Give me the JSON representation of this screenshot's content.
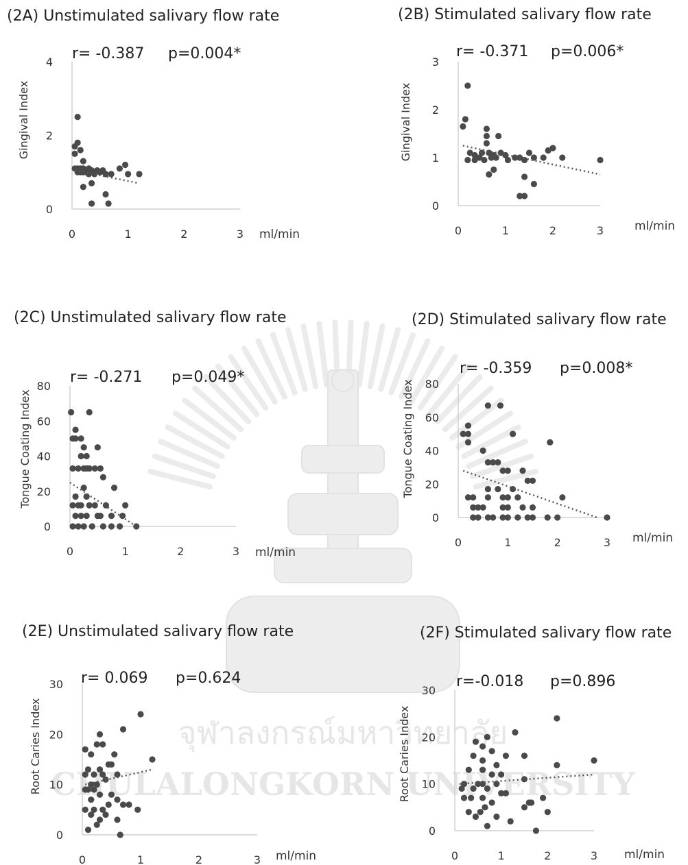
{
  "watermark": {
    "thai": "จุฬาลงกรณ์มหาวิทยาลัย",
    "english": "CHULALONGKORN UNIVERSITY"
  },
  "chart_data": [
    {
      "id": "2A",
      "type": "scatter",
      "title": "(2A) Unstimulated salivary flow rate",
      "r_label": "r= -0.387",
      "p_label": "p=0.004*",
      "ylabel": "Gingival Index",
      "xunit": "ml/min",
      "xlim": [
        0,
        3
      ],
      "ylim": [
        0,
        4
      ],
      "xticks": [
        0,
        1,
        2,
        3
      ],
      "yticks": [
        0,
        2,
        4
      ],
      "trend": [
        [
          0.05,
          1.05
        ],
        [
          1.2,
          0.7
        ]
      ],
      "points": [
        [
          0.1,
          2.5
        ],
        [
          0.1,
          1.8
        ],
        [
          0.05,
          1.7
        ],
        [
          0.15,
          1.6
        ],
        [
          0.05,
          1.5
        ],
        [
          0.2,
          1.3
        ],
        [
          0.05,
          1.1
        ],
        [
          0.1,
          1.1
        ],
        [
          0.15,
          1.1
        ],
        [
          0.2,
          1.1
        ],
        [
          0.25,
          1.05
        ],
        [
          0.3,
          1.1
        ],
        [
          0.35,
          1.05
        ],
        [
          0.1,
          1.0
        ],
        [
          0.15,
          1.0
        ],
        [
          0.2,
          1.0
        ],
        [
          0.25,
          1.0
        ],
        [
          0.3,
          0.95
        ],
        [
          0.4,
          1.0
        ],
        [
          0.45,
          1.05
        ],
        [
          0.5,
          1.0
        ],
        [
          0.55,
          1.05
        ],
        [
          0.6,
          0.95
        ],
        [
          0.7,
          0.95
        ],
        [
          0.85,
          1.1
        ],
        [
          0.95,
          1.2
        ],
        [
          1.0,
          0.95
        ],
        [
          1.2,
          0.95
        ],
        [
          0.2,
          0.6
        ],
        [
          0.35,
          0.7
        ],
        [
          0.6,
          0.4
        ],
        [
          0.35,
          0.15
        ],
        [
          0.65,
          0.15
        ],
        [
          0.4,
          0.95
        ],
        [
          0.12,
          1.05
        ]
      ]
    },
    {
      "id": "2B",
      "type": "scatter",
      "title": "(2B) Stimulated salivary flow rate",
      "r_label": "r= -0.371",
      "p_label": "p=0.006*",
      "ylabel": "Gingival Index",
      "xunit": "ml/min",
      "xlim": [
        0,
        3
      ],
      "ylim": [
        0,
        3
      ],
      "xticks": [
        0,
        1,
        2,
        3
      ],
      "yticks": [
        0,
        1,
        2,
        3
      ],
      "trend": [
        [
          0.1,
          1.25
        ],
        [
          3.0,
          0.65
        ]
      ],
      "points": [
        [
          0.2,
          2.5
        ],
        [
          0.15,
          1.8
        ],
        [
          0.1,
          1.65
        ],
        [
          0.6,
          1.6
        ],
        [
          0.6,
          1.45
        ],
        [
          0.85,
          1.45
        ],
        [
          0.25,
          1.1
        ],
        [
          0.35,
          1.05
        ],
        [
          0.5,
          1.1
        ],
        [
          0.6,
          1.3
        ],
        [
          0.65,
          1.1
        ],
        [
          0.7,
          1.0
        ],
        [
          0.75,
          1.05
        ],
        [
          0.8,
          1.0
        ],
        [
          0.9,
          1.1
        ],
        [
          1.0,
          1.05
        ],
        [
          1.05,
          0.95
        ],
        [
          1.2,
          1.0
        ],
        [
          1.3,
          1.0
        ],
        [
          1.4,
          0.95
        ],
        [
          1.5,
          1.1
        ],
        [
          1.6,
          1.0
        ],
        [
          1.8,
          1.0
        ],
        [
          1.9,
          1.15
        ],
        [
          2.0,
          1.2
        ],
        [
          2.2,
          1.0
        ],
        [
          3.0,
          0.95
        ],
        [
          0.2,
          0.95
        ],
        [
          0.35,
          0.95
        ],
        [
          0.65,
          0.65
        ],
        [
          0.75,
          0.75
        ],
        [
          1.4,
          0.6
        ],
        [
          1.6,
          0.45
        ],
        [
          1.3,
          0.2
        ],
        [
          1.4,
          0.2
        ],
        [
          0.45,
          1.0
        ],
        [
          0.55,
          0.95
        ]
      ]
    },
    {
      "id": "2C",
      "type": "scatter",
      "title": "(2C) Unstimulated salivary flow rate",
      "r_label": "r= -0.271",
      "p_label": "p=0.049*",
      "ylabel": "Tongue Coating Index",
      "xunit": "ml/min",
      "xlim": [
        0,
        3
      ],
      "ylim": [
        0,
        80
      ],
      "xticks": [
        0,
        1,
        2,
        3
      ],
      "yticks": [
        0,
        20,
        40,
        60,
        80
      ],
      "trend": [
        [
          0.0,
          25
        ],
        [
          1.2,
          0
        ]
      ],
      "points": [
        [
          0.02,
          65
        ],
        [
          0.35,
          65
        ],
        [
          0.1,
          55
        ],
        [
          0.05,
          50
        ],
        [
          0.1,
          50
        ],
        [
          0.2,
          50
        ],
        [
          0.25,
          45
        ],
        [
          0.5,
          45
        ],
        [
          0.2,
          40
        ],
        [
          0.3,
          40
        ],
        [
          0.05,
          33
        ],
        [
          0.15,
          33
        ],
        [
          0.25,
          33
        ],
        [
          0.3,
          33
        ],
        [
          0.35,
          33
        ],
        [
          0.45,
          33
        ],
        [
          0.55,
          33
        ],
        [
          0.6,
          28
        ],
        [
          0.25,
          22
        ],
        [
          0.8,
          22
        ],
        [
          0.1,
          17
        ],
        [
          0.3,
          17
        ],
        [
          0.05,
          12
        ],
        [
          0.15,
          12
        ],
        [
          0.2,
          12
        ],
        [
          0.35,
          12
        ],
        [
          0.45,
          12
        ],
        [
          0.65,
          12
        ],
        [
          1.0,
          12
        ],
        [
          0.1,
          6
        ],
        [
          0.3,
          6
        ],
        [
          0.5,
          6
        ],
        [
          0.75,
          6
        ],
        [
          0.95,
          6
        ],
        [
          0.05,
          0
        ],
        [
          0.15,
          0
        ],
        [
          0.25,
          0
        ],
        [
          0.4,
          0
        ],
        [
          0.6,
          0
        ],
        [
          0.75,
          0
        ],
        [
          0.9,
          0
        ],
        [
          1.2,
          0
        ],
        [
          0.2,
          6
        ],
        [
          0.55,
          6
        ]
      ]
    },
    {
      "id": "2D",
      "type": "scatter",
      "title": "(2D) Stimulated salivary flow rate",
      "r_label": "r= -0.359",
      "p_label": "p=0.008*",
      "ylabel": "Tongue Coating Index",
      "xunit": "ml/min",
      "xlim": [
        0,
        3
      ],
      "ylim": [
        0,
        80
      ],
      "xticks": [
        0,
        1,
        2,
        3
      ],
      "yticks": [
        0,
        20,
        40,
        60,
        80
      ],
      "trend": [
        [
          0.1,
          28
        ],
        [
          2.8,
          0
        ]
      ],
      "points": [
        [
          0.6,
          67
        ],
        [
          0.85,
          67
        ],
        [
          0.2,
          55
        ],
        [
          0.1,
          50
        ],
        [
          0.2,
          50
        ],
        [
          1.1,
          50
        ],
        [
          0.2,
          45
        ],
        [
          0.5,
          40
        ],
        [
          0.6,
          33
        ],
        [
          0.7,
          33
        ],
        [
          0.8,
          33
        ],
        [
          1.85,
          45
        ],
        [
          0.9,
          28
        ],
        [
          1.0,
          28
        ],
        [
          1.3,
          28
        ],
        [
          1.4,
          22
        ],
        [
          1.5,
          22
        ],
        [
          0.6,
          17
        ],
        [
          0.8,
          17
        ],
        [
          1.1,
          17
        ],
        [
          1.2,
          12
        ],
        [
          0.2,
          12
        ],
        [
          0.3,
          12
        ],
        [
          0.6,
          12
        ],
        [
          0.9,
          12
        ],
        [
          1.0,
          12
        ],
        [
          2.1,
          12
        ],
        [
          0.3,
          6
        ],
        [
          0.4,
          6
        ],
        [
          0.5,
          6
        ],
        [
          0.9,
          6
        ],
        [
          1.0,
          6
        ],
        [
          1.3,
          6
        ],
        [
          1.5,
          6
        ],
        [
          0.3,
          0
        ],
        [
          0.4,
          0
        ],
        [
          0.6,
          0
        ],
        [
          0.7,
          0
        ],
        [
          0.9,
          0
        ],
        [
          1.0,
          0
        ],
        [
          1.2,
          0
        ],
        [
          1.4,
          0
        ],
        [
          1.5,
          0
        ],
        [
          1.8,
          0
        ],
        [
          2.0,
          0
        ],
        [
          3.0,
          0
        ]
      ]
    },
    {
      "id": "2E",
      "type": "scatter",
      "title": "(2E) Unstimulated salivary flow rate",
      "r_label": "r= 0.069",
      "p_label": "p=0.624",
      "ylabel": "Root Caries Index",
      "xunit": "ml/min",
      "xlim": [
        0,
        3
      ],
      "ylim": [
        0,
        30
      ],
      "xticks": [
        0,
        1,
        2,
        3
      ],
      "yticks": [
        0,
        10,
        20,
        30
      ],
      "trend": [
        [
          0.05,
          10
        ],
        [
          1.2,
          13
        ]
      ],
      "points": [
        [
          1.0,
          24
        ],
        [
          0.7,
          21
        ],
        [
          0.3,
          20
        ],
        [
          0.35,
          18
        ],
        [
          0.25,
          18
        ],
        [
          0.05,
          17
        ],
        [
          1.2,
          15
        ],
        [
          0.15,
          16
        ],
        [
          0.45,
          14
        ],
        [
          0.5,
          14
        ],
        [
          0.3,
          13
        ],
        [
          0.2,
          12
        ],
        [
          0.35,
          12
        ],
        [
          0.1,
          13
        ],
        [
          0.6,
          12
        ],
        [
          0.4,
          11
        ],
        [
          0.15,
          10
        ],
        [
          0.25,
          10
        ],
        [
          0.05,
          9
        ],
        [
          0.1,
          9
        ],
        [
          0.2,
          9
        ],
        [
          0.3,
          8
        ],
        [
          0.5,
          8
        ],
        [
          0.6,
          7
        ],
        [
          0.15,
          7
        ],
        [
          0.05,
          5
        ],
        [
          0.2,
          5
        ],
        [
          0.35,
          5
        ],
        [
          0.45,
          6
        ],
        [
          0.7,
          6
        ],
        [
          0.8,
          6
        ],
        [
          0.95,
          5
        ],
        [
          0.15,
          4
        ],
        [
          0.3,
          3
        ],
        [
          0.4,
          4
        ],
        [
          0.6,
          3
        ],
        [
          0.25,
          2
        ],
        [
          0.1,
          1
        ],
        [
          0.65,
          0
        ],
        [
          0.55,
          16
        ],
        [
          0.05,
          12
        ]
      ]
    },
    {
      "id": "2F",
      "type": "scatter",
      "title": "(2F) Stimulated salivary flow rate",
      "r_label": "r=-0.018",
      "p_label": "p=0.896",
      "ylabel": "Root Caries Index",
      "xunit": "ml/min",
      "xlim": [
        0,
        3
      ],
      "ylim": [
        0,
        30
      ],
      "xticks": [
        0,
        1,
        2,
        3
      ],
      "yticks": [
        0,
        10,
        20,
        30
      ],
      "trend": [
        [
          0.1,
          10
        ],
        [
          3.0,
          12
        ]
      ],
      "points": [
        [
          2.2,
          24
        ],
        [
          1.3,
          21
        ],
        [
          0.7,
          20
        ],
        [
          0.45,
          19
        ],
        [
          0.6,
          18
        ],
        [
          1.1,
          16
        ],
        [
          1.5,
          16
        ],
        [
          0.8,
          17
        ],
        [
          3.0,
          15
        ],
        [
          2.2,
          14
        ],
        [
          0.6,
          15
        ],
        [
          0.9,
          14
        ],
        [
          0.3,
          13
        ],
        [
          0.6,
          13
        ],
        [
          0.8,
          12
        ],
        [
          1.0,
          12
        ],
        [
          1.5,
          11
        ],
        [
          0.2,
          10
        ],
        [
          0.5,
          10
        ],
        [
          0.6,
          10
        ],
        [
          0.9,
          10
        ],
        [
          0.15,
          9
        ],
        [
          0.4,
          9
        ],
        [
          0.7,
          9
        ],
        [
          1.0,
          8
        ],
        [
          1.1,
          8
        ],
        [
          0.2,
          7
        ],
        [
          0.35,
          7
        ],
        [
          0.6,
          7
        ],
        [
          0.8,
          6
        ],
        [
          1.6,
          6
        ],
        [
          1.9,
          7
        ],
        [
          1.5,
          5
        ],
        [
          0.3,
          4
        ],
        [
          0.55,
          4
        ],
        [
          0.65,
          5
        ],
        [
          2.0,
          4
        ],
        [
          0.45,
          3
        ],
        [
          0.9,
          3
        ],
        [
          1.2,
          2
        ],
        [
          0.7,
          1
        ],
        [
          1.75,
          0
        ],
        [
          1.65,
          6
        ],
        [
          0.4,
          16
        ]
      ]
    }
  ]
}
